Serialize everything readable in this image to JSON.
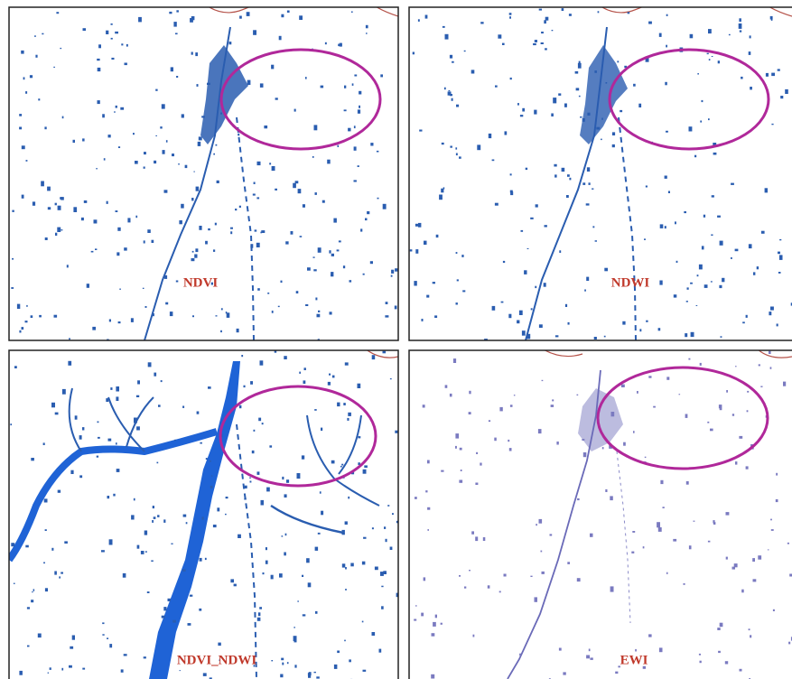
{
  "panels": [
    {
      "label": "NDVI"
    },
    {
      "label": "NDWI"
    },
    {
      "label": "NDVI_NDWI"
    },
    {
      "label": "EWI"
    }
  ]
}
